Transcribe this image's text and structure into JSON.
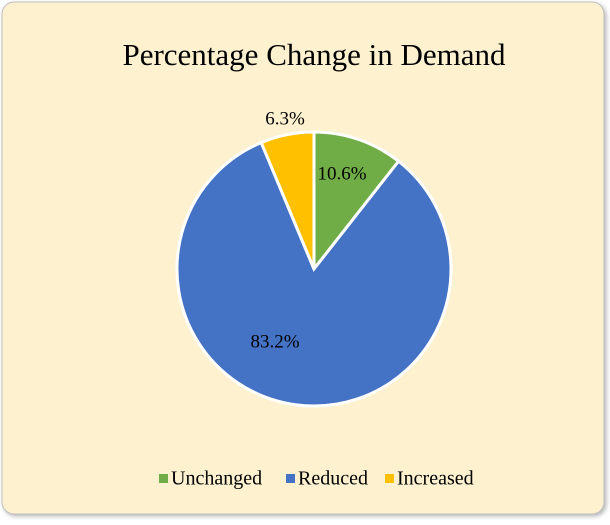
{
  "chart_data": {
    "type": "pie",
    "title": "Percentage Change in Demand",
    "categories": [
      "Unchanged",
      "Reduced",
      "Increased"
    ],
    "values": [
      10.6,
      83.2,
      6.3
    ],
    "value_labels": [
      "10.6%",
      "83.2%",
      "6.3%"
    ],
    "colors": [
      "#70ad47",
      "#4472c4",
      "#ffc000"
    ],
    "legend": "bottom"
  }
}
